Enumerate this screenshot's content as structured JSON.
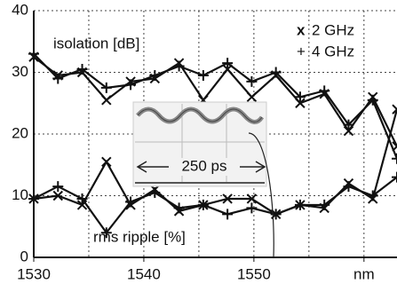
{
  "chart_data": {
    "type": "line",
    "x": [
      1530,
      1532.2,
      1534.4,
      1536.6,
      1538.8,
      1541.0,
      1543.2,
      1545.4,
      1547.6,
      1549.8,
      1552.0,
      1554.2,
      1556.4,
      1558.6,
      1560.8,
      1563.0
    ],
    "series": [
      {
        "marker": "x",
        "color": "#111111",
        "values": [
          32.5,
          29.5,
          30,
          25.5,
          28.5,
          29,
          31.5,
          25.5,
          30.5,
          26,
          29.5,
          25,
          26.5,
          20.5,
          26,
          18
        ]
      },
      {
        "marker": "+",
        "color": "#111111",
        "values": [
          33,
          29,
          30.5,
          27.5,
          28,
          29.5,
          31,
          29.5,
          31.5,
          28.5,
          30,
          26,
          27,
          21.5,
          25.5,
          16
        ]
      },
      {
        "marker": "x",
        "color": "#111111",
        "values": [
          9.5,
          10,
          8.5,
          15.5,
          8.5,
          11,
          7.5,
          8.5,
          9.5,
          9.5,
          7,
          8.5,
          8,
          12,
          9.5,
          24
        ]
      },
      {
        "marker": "+",
        "color": "#111111",
        "values": [
          9.5,
          11.5,
          9.5,
          4,
          9,
          10.5,
          8,
          8.5,
          7,
          8,
          7,
          8.5,
          8.5,
          11.5,
          10,
          13
        ]
      }
    ],
    "legend": [
      {
        "symbol": "x",
        "label": "2 GHz"
      },
      {
        "symbol": "+",
        "label": "4 GHz"
      }
    ],
    "annotations": [
      "isolation [dB]",
      "rms ripple [%]"
    ],
    "inset_label": "250 ps",
    "xlim": [
      1530,
      1563
    ],
    "ylim": [
      0,
      40
    ],
    "xticks": [
      1530,
      1540,
      1550,
      {
        "value": 1560,
        "label": "nm"
      }
    ],
    "xgrid": [
      1535,
      1540,
      1545,
      1550,
      1555,
      1560
    ],
    "yticks": [
      0,
      10,
      20,
      30,
      40
    ],
    "grid": true
  }
}
